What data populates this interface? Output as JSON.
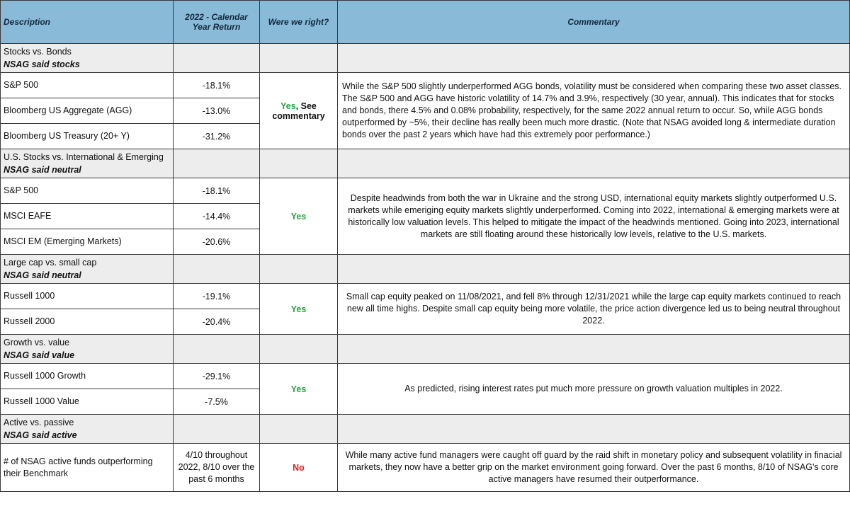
{
  "header": {
    "description": "Description",
    "return": "2022 - Calendar Year Return",
    "right": "Were we right?",
    "commentary": "Commentary"
  },
  "sections": [
    {
      "title": "Stocks vs. Bonds",
      "said": "NSAG said stocks",
      "rows": [
        {
          "name": "S&P 500",
          "ret": "-18.1%"
        },
        {
          "name": "Bloomberg US Aggregate (AGG)",
          "ret": "-13.0%"
        },
        {
          "name": "Bloomberg US Treasury (20+ Y)",
          "ret": "-31.2%"
        }
      ],
      "verdict_yes": "Yes",
      "verdict_rest": ", See commentary",
      "commentary": "While the S&P 500 slightly underperformed AGG bonds, volatility must be considered when comparing these two asset classes. The S&P 500 and AGG have historic volatility of 14.7% and 3.9%, respectively (30 year, annual). This indicates that for stocks and bonds, there 4.5% and 0.08% probability, respectively, for the same 2022 annual return to occur. So, while AGG bonds outperformed by ~5%, their decline has really been much more drastic. (Note that NSAG avoided long & intermediate duration bonds over the past 2 years which have had this extremely poor performance.)"
    },
    {
      "title": "U.S. Stocks vs. International & Emerging",
      "said": "NSAG said neutral",
      "rows": [
        {
          "name": "S&P 500",
          "ret": "-18.1%"
        },
        {
          "name": "MSCI EAFE",
          "ret": "-14.4%"
        },
        {
          "name": "MSCI EM (Emerging Markets)",
          "ret": "-20.6%"
        }
      ],
      "verdict": "Yes",
      "commentary": "Despite headwinds from both the war in Ukraine and the strong USD, international equity markets slightly outperformed U.S. markets while emeriging equity markets slightly underperformed. Coming into 2022, international & emerging markets were at historically low valuation levels. This helped to mitigate the impact of the headwinds mentioned. Going into 2023, international markets are still floating around these historically low levels, relative to the U.S. markets."
    },
    {
      "title": "Large cap vs. small cap",
      "said": "NSAG said neutral",
      "rows": [
        {
          "name": "Russell 1000",
          "ret": "-19.1%"
        },
        {
          "name": "Russell 2000",
          "ret": "-20.4%"
        }
      ],
      "verdict": "Yes",
      "commentary": "Small cap equity peaked on 11/08/2021, and fell 8% through 12/31/2021 while the large cap equity markets continued to reach new all time highs. Despite small cap equity being more volatile, the price action divergence led us to being neutral throughout 2022."
    },
    {
      "title": "Growth vs. value",
      "said": "NSAG said value",
      "rows": [
        {
          "name": "Russell 1000 Growth",
          "ret": "-29.1%"
        },
        {
          "name": "Russell 1000 Value",
          "ret": "-7.5%"
        }
      ],
      "verdict": "Yes",
      "commentary": "As predicted, rising interest rates put much more pressure on growth valuation multiples in 2022."
    },
    {
      "title": "Active vs. passive",
      "said": "NSAG said active",
      "rows": [
        {
          "name": "# of NSAG active funds outperforming their Benchmark",
          "ret": "4/10 throughout 2022, 8/10 over the past 6 months"
        }
      ],
      "verdict": "No",
      "commentary": "While many active fund managers were caught off guard by the raid shift in monetary policy and subsequent volatility in finacial markets, they now have a better grip on the market environment going forward. Over the past 6 months, 8/10 of NSAG's core active managers have resumed their outperformance."
    }
  ],
  "colors": {
    "header_bg": "#89bad7",
    "category_bg": "#ededed",
    "yes": "#2ea043",
    "no": "#e02020"
  }
}
